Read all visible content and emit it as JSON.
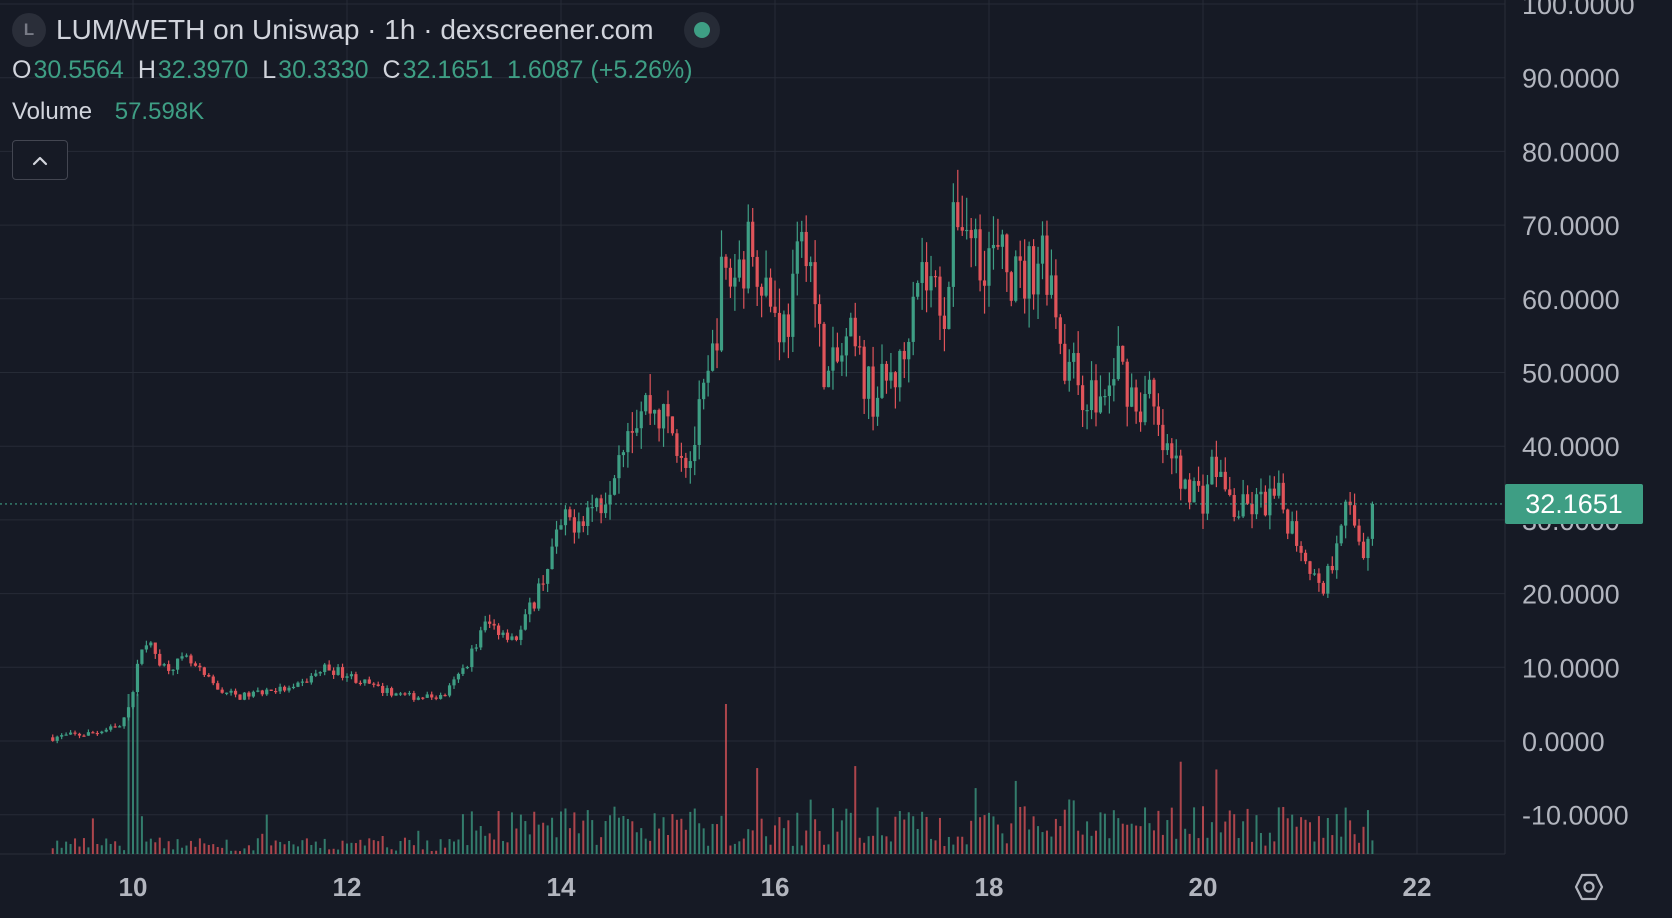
{
  "header": {
    "symbol_badge": "L",
    "title": "LUM/WETH on Uniswap · 1h · dexscreener.com",
    "live_icon": "live-status-dot"
  },
  "ohlc": {
    "open_label": "O",
    "open": "30.5564",
    "high_label": "H",
    "high": "32.3970",
    "low_label": "L",
    "low": "30.3330",
    "close_label": "C",
    "close": "32.1651",
    "change": "1.6087 (+5.26%)"
  },
  "volume": {
    "label": "Volume",
    "value": "57.598K"
  },
  "controls": {
    "collapse_icon": "chevron-up-icon",
    "settings_icon": "settings-hexagon-icon"
  },
  "current_price": "32.1651",
  "colors": {
    "up": "#3e9e84",
    "down": "#e0545a",
    "background": "#161a25",
    "grid": "#262b36",
    "axis_text": "#b2b5be"
  },
  "chart_data": {
    "type": "candlestick",
    "title": "LUM/WETH on Uniswap · 1h · dexscreener.com",
    "interval": "1h",
    "yticks": [
      "100.0000",
      "90.0000",
      "80.0000",
      "70.0000",
      "60.0000",
      "50.0000",
      "40.0000",
      "30.0000",
      "20.0000",
      "10.0000",
      "0.0000",
      "-10.0000"
    ],
    "ylim": [
      -15,
      100
    ],
    "xticks": [
      "10",
      "12",
      "14",
      "16",
      "18",
      "20",
      "22"
    ],
    "xlim": [
      9.2,
      22.8
    ],
    "grid": true,
    "last_price": 32.1651,
    "price_path": [
      [
        9.25,
        0.5
      ],
      [
        9.6,
        1.0
      ],
      [
        9.9,
        2
      ],
      [
        10.0,
        7
      ],
      [
        10.1,
        14
      ],
      [
        10.3,
        10
      ],
      [
        10.5,
        11
      ],
      [
        10.8,
        7
      ],
      [
        11.0,
        6
      ],
      [
        11.3,
        7
      ],
      [
        11.5,
        7
      ],
      [
        11.8,
        10
      ],
      [
        12.0,
        9
      ],
      [
        12.3,
        7
      ],
      [
        12.6,
        6
      ],
      [
        12.9,
        6
      ],
      [
        13.1,
        10
      ],
      [
        13.3,
        16
      ],
      [
        13.6,
        14
      ],
      [
        13.8,
        21
      ],
      [
        14.0,
        29
      ],
      [
        14.2,
        31
      ],
      [
        14.4,
        33
      ],
      [
        14.6,
        43
      ],
      [
        14.8,
        46
      ],
      [
        15.0,
        43
      ],
      [
        15.2,
        38
      ],
      [
        15.4,
        50
      ],
      [
        15.5,
        62
      ],
      [
        15.6,
        63
      ],
      [
        15.8,
        68
      ],
      [
        16.0,
        58
      ],
      [
        16.1,
        56
      ],
      [
        16.3,
        70
      ],
      [
        16.4,
        55
      ],
      [
        16.5,
        49
      ],
      [
        16.7,
        54
      ],
      [
        16.9,
        47
      ],
      [
        17.0,
        48
      ],
      [
        17.2,
        51
      ],
      [
        17.3,
        65
      ],
      [
        17.5,
        61
      ],
      [
        17.6,
        59
      ],
      [
        17.7,
        73
      ],
      [
        17.9,
        67
      ],
      [
        18.1,
        65
      ],
      [
        18.3,
        62
      ],
      [
        18.5,
        67
      ],
      [
        18.6,
        62
      ],
      [
        18.7,
        52
      ],
      [
        18.9,
        47
      ],
      [
        19.1,
        46
      ],
      [
        19.2,
        52
      ],
      [
        19.4,
        45
      ],
      [
        19.5,
        47
      ],
      [
        19.6,
        40
      ],
      [
        19.8,
        36
      ],
      [
        20.0,
        33
      ],
      [
        20.1,
        38
      ],
      [
        20.3,
        31
      ],
      [
        20.5,
        32
      ],
      [
        20.7,
        33
      ],
      [
        20.8,
        30
      ],
      [
        21.0,
        24
      ],
      [
        21.1,
        20
      ],
      [
        21.2,
        24
      ],
      [
        21.3,
        32
      ],
      [
        21.4,
        30
      ],
      [
        21.5,
        26
      ],
      [
        21.6,
        32.2
      ]
    ]
  }
}
